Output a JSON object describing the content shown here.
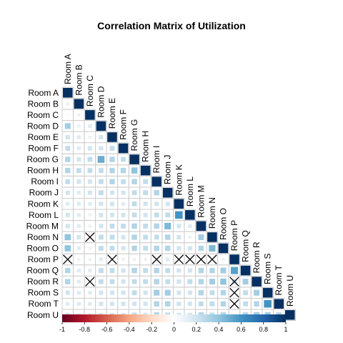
{
  "chart_data": {
    "type": "heatmap",
    "title": "Correlation Matrix of Utilization",
    "matrix_shape": "lower-triangular",
    "labels": [
      "Room A",
      "Room B",
      "Room C",
      "Room D",
      "Room E",
      "Room F",
      "Room G",
      "Room H",
      "Room I",
      "Room J",
      "Room K",
      "Room L",
      "Room M",
      "Room N",
      "Room O",
      "Room P",
      "Room Q",
      "Room R",
      "Room S",
      "Room T",
      "Room U"
    ],
    "grid": true,
    "legend": "bottom",
    "color_scale": {
      "min": -1,
      "max": 1,
      "colors": [
        "#67001f",
        "#b2182b",
        "#d6604d",
        "#f4a582",
        "#fddbc7",
        "#ffffff",
        "#d1e5f0",
        "#92c5de",
        "#4393c3",
        "#2166ac",
        "#053061"
      ],
      "ticks": [
        "-1",
        "-0.8",
        "-0.6",
        "-0.4",
        "-0.2",
        "0",
        "0.2",
        "0.4",
        "0.6",
        "0.8",
        "1"
      ]
    },
    "insignificant_marker": "X",
    "rows": [
      [
        1
      ],
      [
        0.1,
        1
      ],
      [
        0.05,
        0.1,
        1
      ],
      [
        0.35,
        0.1,
        0.15,
        1
      ],
      [
        0.2,
        0.15,
        0.1,
        0.2,
        1
      ],
      [
        0.25,
        0.15,
        0.2,
        0.2,
        0.25,
        1
      ],
      [
        0.3,
        0.2,
        0.25,
        0.5,
        0.3,
        0.25,
        1
      ],
      [
        0.3,
        0.25,
        0.25,
        0.25,
        0.3,
        0.3,
        0.4,
        1
      ],
      [
        0.25,
        0.2,
        0.2,
        0.25,
        0.3,
        0.25,
        0.3,
        0.25,
        1
      ],
      [
        0.2,
        0.15,
        0.2,
        0.25,
        0.2,
        0.2,
        0.25,
        0.25,
        0.3,
        1
      ],
      [
        0.15,
        0.15,
        0.15,
        0.2,
        0.2,
        0.15,
        0.25,
        0.2,
        0.2,
        0.2,
        1
      ],
      [
        0.2,
        0.15,
        0.1,
        0.2,
        0.2,
        0.2,
        0.25,
        0.2,
        0.25,
        0.25,
        0.6,
        1
      ],
      [
        0.2,
        0.15,
        0.1,
        0.2,
        0.25,
        0.25,
        0.3,
        0.25,
        0.3,
        0.45,
        0.2,
        0.15,
        1
      ],
      [
        0.4,
        0.2,
        0.03,
        0.25,
        0.25,
        0.2,
        0.3,
        0.25,
        0.25,
        0.3,
        0.2,
        0.1,
        0.35,
        1
      ],
      [
        0.4,
        0.15,
        0.1,
        0.25,
        0.25,
        0.2,
        0.3,
        0.25,
        0.3,
        0.3,
        0.2,
        0.2,
        0.3,
        0.45,
        1
      ],
      [
        0.02,
        0.1,
        0.1,
        0.15,
        0.02,
        0.1,
        0.1,
        0.1,
        0.03,
        0.15,
        0.03,
        0.02,
        0.02,
        0.02,
        0.1,
        1
      ],
      [
        0.3,
        0.15,
        0.15,
        0.25,
        0.25,
        0.2,
        0.3,
        0.25,
        0.3,
        0.25,
        0.2,
        0.2,
        0.3,
        0.3,
        0.35,
        0.55,
        1
      ],
      [
        0.3,
        0.15,
        0.03,
        0.25,
        0.25,
        0.2,
        0.25,
        0.25,
        0.3,
        0.25,
        0.2,
        0.25,
        0.3,
        0.35,
        0.4,
        0.25,
        0.35,
        1
      ],
      [
        0.2,
        0.15,
        0.15,
        0.2,
        0.2,
        0.2,
        0.25,
        0.2,
        0.35,
        0.35,
        0.2,
        0.2,
        0.3,
        0.25,
        0.3,
        0.02,
        0.25,
        0.35,
        1
      ],
      [
        0.15,
        0.15,
        0.15,
        0.2,
        0.2,
        0.2,
        0.2,
        0.2,
        0.3,
        0.3,
        0.2,
        0.2,
        0.25,
        0.25,
        0.3,
        0.02,
        0.25,
        0.3,
        0.6,
        1
      ],
      [
        0.2,
        0.15,
        0.15,
        0.2,
        0.2,
        0.2,
        0.25,
        0.2,
        0.3,
        0.25,
        0.2,
        0.2,
        0.3,
        0.25,
        0.3,
        0.1,
        0.3,
        0.35,
        0.35,
        0.3,
        1
      ]
    ],
    "insignificant": [
      [
        13,
        2
      ],
      [
        15,
        0
      ],
      [
        15,
        4
      ],
      [
        15,
        8
      ],
      [
        15,
        10
      ],
      [
        15,
        11
      ],
      [
        15,
        12
      ],
      [
        15,
        13
      ],
      [
        17,
        2
      ],
      [
        17,
        15
      ],
      [
        18,
        15
      ],
      [
        19,
        15
      ]
    ]
  }
}
